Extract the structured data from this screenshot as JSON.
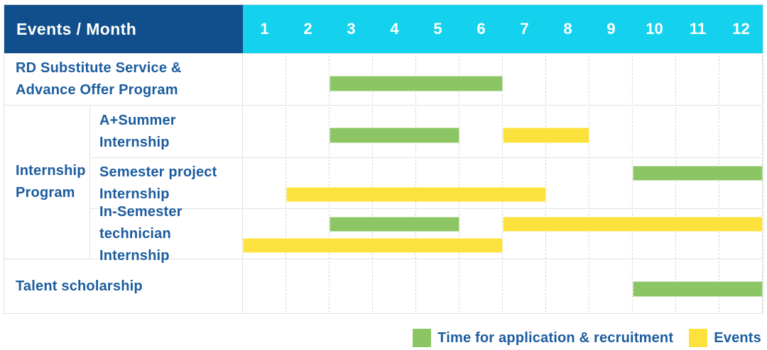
{
  "header": {
    "label": "Events / Month",
    "months": [
      "1",
      "2",
      "3",
      "4",
      "5",
      "6",
      "7",
      "8",
      "9",
      "10",
      "11",
      "12"
    ]
  },
  "colors": {
    "green": "#8cc563",
    "yellow": "#fde23d",
    "navy": "#114f8c",
    "cyan": "#14d2ee",
    "label_blue": "#1b5c9e",
    "grid": "#e2e2e2"
  },
  "sections": [
    {
      "label": [
        "RD Substitute Service &",
        "Advance Offer Program"
      ],
      "bars": [
        {
          "color": "green",
          "start": 3,
          "span": 4,
          "lane": "c"
        }
      ]
    },
    {
      "label": [
        "Internship",
        "Program"
      ],
      "children": [
        {
          "label": [
            "A+Summer",
            "Internship"
          ],
          "bars": [
            {
              "color": "green",
              "start": 3,
              "span": 3,
              "lane": "c"
            },
            {
              "color": "yellow",
              "start": 7,
              "span": 2,
              "lane": "c"
            }
          ]
        },
        {
          "label": [
            "Semester project",
            "Internship"
          ],
          "bars": [
            {
              "color": "green",
              "start": 10,
              "span": 3,
              "lane": "a"
            },
            {
              "color": "yellow",
              "start": 2,
              "span": 6,
              "lane": "b"
            }
          ]
        },
        {
          "label": [
            "In-Semester",
            "technician Internship"
          ],
          "bars": [
            {
              "color": "green",
              "start": 3,
              "span": 3,
              "lane": "a"
            },
            {
              "color": "yellow",
              "start": 7,
              "span": 6,
              "lane": "a"
            },
            {
              "color": "yellow",
              "start": 1,
              "span": 6,
              "lane": "b"
            }
          ]
        }
      ]
    },
    {
      "label": [
        "Talent scholarship"
      ],
      "bars": [
        {
          "color": "green",
          "start": 10,
          "span": 3,
          "lane": "c"
        }
      ]
    }
  ],
  "legend": [
    {
      "color": "green",
      "label": "Time for application & recruitment"
    },
    {
      "color": "yellow",
      "label": "Events"
    }
  ],
  "chart_data": {
    "type": "gantt",
    "unit": "month",
    "x_range": [
      1,
      12
    ],
    "x_ticks": [
      1,
      2,
      3,
      4,
      5,
      6,
      7,
      8,
      9,
      10,
      11,
      12
    ],
    "corner_header": "Events / Month",
    "legend": {
      "green": "Time for application & recruitment",
      "yellow": "Events"
    },
    "tasks": [
      {
        "row": "RD Substitute Service & Advance Offer Program",
        "group": null,
        "kind": "application",
        "color": "green",
        "start_month": 3,
        "end_month": 6
      },
      {
        "row": "A+Summer Internship",
        "group": "Internship Program",
        "kind": "application",
        "color": "green",
        "start_month": 3,
        "end_month": 5
      },
      {
        "row": "A+Summer Internship",
        "group": "Internship Program",
        "kind": "event",
        "color": "yellow",
        "start_month": 7,
        "end_month": 8
      },
      {
        "row": "Semester project Internship",
        "group": "Internship Program",
        "kind": "application",
        "color": "green",
        "start_month": 10,
        "end_month": 12
      },
      {
        "row": "Semester project Internship",
        "group": "Internship Program",
        "kind": "event",
        "color": "yellow",
        "start_month": 2,
        "end_month": 7
      },
      {
        "row": "In-Semester technician Internship",
        "group": "Internship Program",
        "kind": "application",
        "color": "green",
        "start_month": 3,
        "end_month": 5
      },
      {
        "row": "In-Semester technician Internship",
        "group": "Internship Program",
        "kind": "event",
        "color": "yellow",
        "start_month": 1,
        "end_month": 6
      },
      {
        "row": "In-Semester technician Internship",
        "group": "Internship Program",
        "kind": "event",
        "color": "yellow",
        "start_month": 7,
        "end_month": 12
      },
      {
        "row": "Talent scholarship",
        "group": null,
        "kind": "application",
        "color": "green",
        "start_month": 10,
        "end_month": 12
      }
    ]
  }
}
